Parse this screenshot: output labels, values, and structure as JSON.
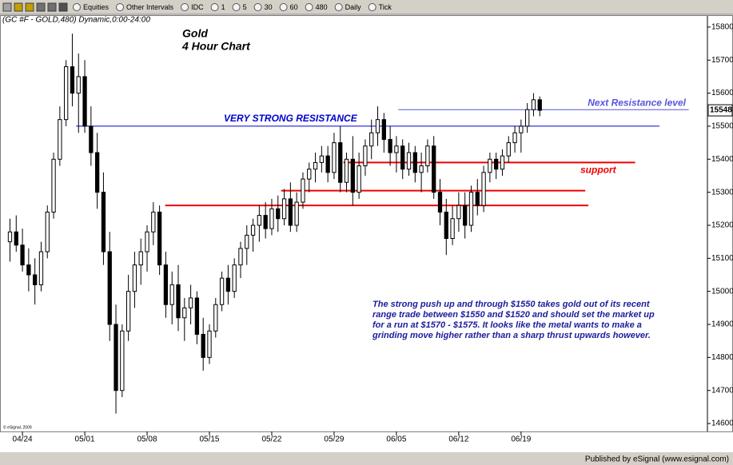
{
  "toolbar": {
    "items": [
      "Equities",
      "Other Intervals",
      "IDC",
      "1",
      "5",
      "30",
      "60",
      "480",
      "Daily",
      "Tick"
    ]
  },
  "chart_data": {
    "type": "candlestick",
    "header": "(GC #F - GOLD,480) Dynamic,0:00-24:00",
    "title": "Gold",
    "subtitle": "4 Hour Chart",
    "copyright": "© eSignal, 2009",
    "footer": "Published by eSignal (www.esignal.com)",
    "annotation": [
      "The strong push up and through $1550 takes gold out of its recent",
      "range trade between $1550 and $1520 and should set the market up",
      "for a run at $1570 - $1575. It looks like the metal wants to make a",
      "grinding move higher rather than a sharp thrust upwards however."
    ],
    "up_color": "#ffffff",
    "down_color": "#000000",
    "last_price": 15548,
    "xlim": [
      -1.6,
      111.9
    ],
    "xticks": [
      {
        "value": 2,
        "label": "04/24"
      },
      {
        "value": 12,
        "label": "05/01"
      },
      {
        "value": 22,
        "label": "05/08"
      },
      {
        "value": 32,
        "label": "05/15"
      },
      {
        "value": 42,
        "label": "05/22"
      },
      {
        "value": 52,
        "label": "05/29"
      },
      {
        "value": 62,
        "label": "06/05"
      },
      {
        "value": 72,
        "label": "06/12"
      },
      {
        "value": 82,
        "label": "06/19"
      }
    ],
    "ylim": [
      14576,
      15836
    ],
    "yticks": [
      14600,
      14700,
      14800,
      14900,
      15000,
      15100,
      15200,
      15300,
      15400,
      15500,
      15600,
      15700,
      15800
    ],
    "levels": [
      {
        "value": 15500,
        "x": [
          10.6,
          104.2
        ],
        "color": "#0000cc",
        "label": "VERY STRONG RESISTANCE"
      },
      {
        "value": 15550,
        "x": [
          62.3,
          108.9
        ],
        "color": "#5555dd",
        "label": "Next Resistance level"
      },
      {
        "value": 15390,
        "x": [
          53.5,
          100.3
        ],
        "color": "#ee0000",
        "label": "support"
      },
      {
        "value": 15305,
        "x": [
          43.5,
          92.3
        ],
        "color": "#ee0000"
      },
      {
        "value": 15260,
        "x": [
          24.9,
          92.8
        ],
        "color": "#ee0000"
      }
    ],
    "open": [
      15150,
      15180,
      15140,
      15080,
      15050,
      15020,
      15120,
      15240,
      15400,
      15520,
      15680,
      15600,
      15650,
      15500,
      15420,
      15300,
      15120,
      14900,
      14700,
      14880,
      15000,
      15080,
      15120,
      15180,
      15240,
      15080,
      14960,
      15020,
      14920,
      14950,
      14980,
      14870,
      14800,
      14880,
      14960,
      15040,
      15000,
      15080,
      15130,
      15170,
      15200,
      15230,
      15190,
      15250,
      15220,
      15280,
      15200,
      15270,
      15340,
      15370,
      15390,
      15410,
      15360,
      15450,
      15330,
      15400,
      15300,
      15380,
      15440,
      15480,
      15520,
      15460,
      15420,
      15440,
      15370,
      15420,
      15360,
      15380,
      15440,
      15300,
      15240,
      15160,
      15220,
      15260,
      15200,
      15300,
      15260,
      15360,
      15400,
      15370,
      15410,
      15450,
      15480,
      15500,
      15550,
      15580
    ],
    "high": [
      15220,
      15230,
      15190,
      15130,
      15100,
      15150,
      15260,
      15420,
      15560,
      15700,
      15780,
      15720,
      15700,
      15560,
      15480,
      15360,
      15180,
      14960,
      14900,
      15050,
      15120,
      15160,
      15200,
      15270,
      15260,
      15120,
      15060,
      15080,
      14980,
      15020,
      15000,
      14920,
      14900,
      14980,
      15060,
      15080,
      15100,
      15150,
      15200,
      15220,
      15260,
      15270,
      15280,
      15290,
      15310,
      15330,
      15300,
      15360,
      15390,
      15420,
      15440,
      15440,
      15480,
      15500,
      15420,
      15470,
      15420,
      15460,
      15520,
      15560,
      15540,
      15500,
      15470,
      15460,
      15450,
      15440,
      15420,
      15460,
      15470,
      15340,
      15280,
      15260,
      15300,
      15300,
      15320,
      15340,
      15380,
      15420,
      15420,
      15430,
      15470,
      15500,
      15520,
      15570,
      15600,
      15590
    ],
    "low": [
      15090,
      15120,
      15060,
      15000,
      14960,
      15000,
      15100,
      15220,
      15380,
      15500,
      15560,
      15480,
      15480,
      15380,
      15250,
      15080,
      14850,
      14630,
      14680,
      14850,
      14950,
      15020,
      15060,
      15140,
      15050,
      14920,
      14900,
      14880,
      14850,
      14900,
      14840,
      14760,
      14780,
      14860,
      14940,
      14960,
      14980,
      15040,
      15080,
      15120,
      15150,
      15160,
      15170,
      15180,
      15200,
      15180,
      15180,
      15250,
      15300,
      15330,
      15360,
      15330,
      15340,
      15300,
      15300,
      15260,
      15280,
      15350,
      15400,
      15440,
      15420,
      15380,
      15360,
      15340,
      15350,
      15330,
      15300,
      15360,
      15280,
      15200,
      15110,
      15140,
      15180,
      15160,
      15180,
      15230,
      15240,
      15330,
      15340,
      15350,
      15390,
      15420,
      15420,
      15480,
      15530,
      15530
    ],
    "close": [
      15180,
      15140,
      15080,
      15050,
      15020,
      15120,
      15240,
      15400,
      15520,
      15680,
      15600,
      15650,
      15500,
      15420,
      15300,
      15120,
      14900,
      14700,
      14880,
      15000,
      15080,
      15120,
      15180,
      15240,
      15080,
      14960,
      15020,
      14920,
      14950,
      14980,
      14870,
      14800,
      14880,
      14960,
      15040,
      15000,
      15080,
      15130,
      15170,
      15200,
      15230,
      15190,
      15250,
      15220,
      15280,
      15200,
      15270,
      15340,
      15370,
      15390,
      15410,
      15360,
      15450,
      15330,
      15400,
      15300,
      15380,
      15440,
      15480,
      15520,
      15460,
      15420,
      15440,
      15370,
      15420,
      15360,
      15380,
      15440,
      15300,
      15240,
      15160,
      15220,
      15260,
      15200,
      15300,
      15260,
      15360,
      15400,
      15370,
      15410,
      15450,
      15480,
      15500,
      15550,
      15580,
      15548
    ]
  }
}
